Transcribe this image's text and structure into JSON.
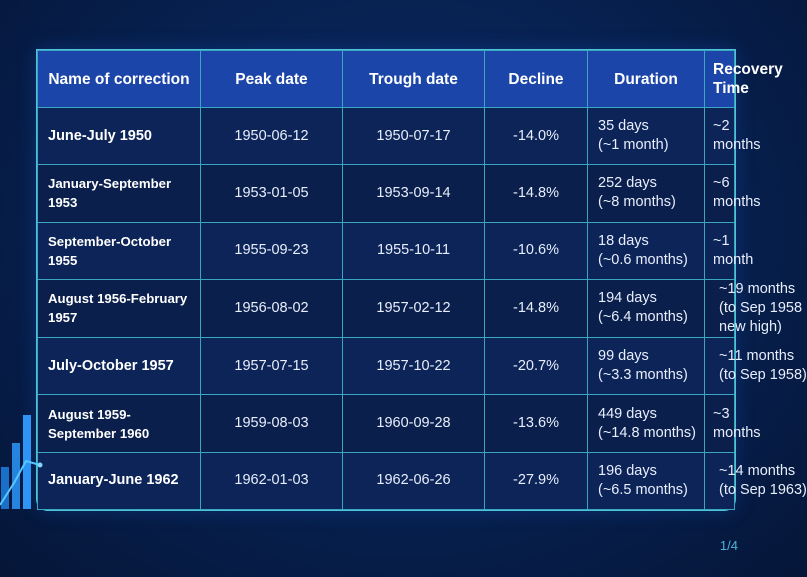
{
  "table": {
    "headers": [
      "Name of correction",
      "Peak date",
      "Trough date",
      "Decline",
      "Duration",
      "Recovery Time"
    ],
    "rows": [
      {
        "name": "June-July 1950",
        "peak": "1950-06-12",
        "trough": "1950-07-17",
        "decline": "-14.0%",
        "duration_days": "35 days",
        "duration_months": "(~1 month)",
        "recovery": [
          "~2 months"
        ]
      },
      {
        "name": "January-September 1953",
        "peak": "1953-01-05",
        "trough": "1953-09-14",
        "decline": "-14.8%",
        "duration_days": "252 days",
        "duration_months": "(~8 months)",
        "recovery": [
          "~6 months"
        ]
      },
      {
        "name": "September-October 1955",
        "peak": "1955-09-23",
        "trough": "1955-10-11",
        "decline": "-10.6%",
        "duration_days": "18 days",
        "duration_months": "(~0.6 months)",
        "recovery": [
          "~1 month"
        ]
      },
      {
        "name": "August 1956-February 1957",
        "peak": "1956-08-02",
        "trough": "1957-02-12",
        "decline": "-14.8%",
        "duration_days": "194 days",
        "duration_months": "(~6.4 months)",
        "recovery": [
          "~19 months",
          "(to Sep 1958",
          "new high)"
        ]
      },
      {
        "name": "July-October 1957",
        "peak": "1957-07-15",
        "trough": "1957-10-22",
        "decline": "-20.7%",
        "duration_days": "99 days",
        "duration_months": "(~3.3 months)",
        "recovery": [
          "~11 months",
          "(to Sep 1958)"
        ]
      },
      {
        "name": "August 1959-September 1960",
        "peak": "1959-08-03",
        "trough": "1960-09-28",
        "decline": "-13.6%",
        "duration_days": "449 days",
        "duration_months": "(~14.8 months)",
        "recovery": [
          "~3 months"
        ]
      },
      {
        "name": "January-June 1962",
        "peak": "1962-01-03",
        "trough": "1962-06-26",
        "decline": "-27.9%",
        "duration_days": "196 days",
        "duration_months": "(~6.5 months)",
        "recovery": [
          "~14 months",
          "(to Sep 1963)"
        ]
      }
    ]
  },
  "page_indicator": "1/4",
  "colors": {
    "background": "#07204f",
    "header": "#1b45a8",
    "border": "#3aa6c0",
    "accent": "#4fb3d9"
  },
  "decoration": {
    "icon": "bar-chart-trend-icon"
  }
}
